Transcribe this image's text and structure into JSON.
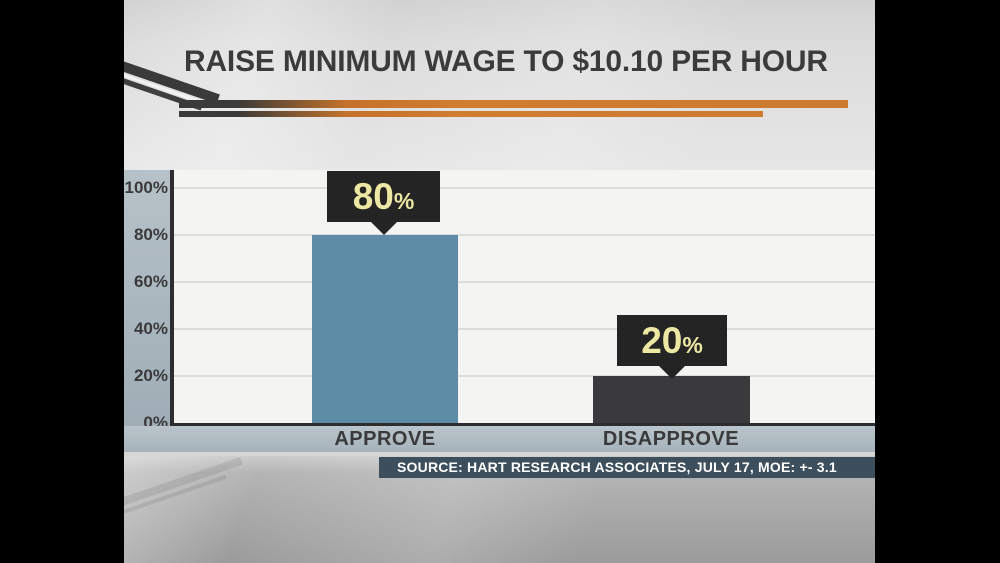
{
  "title": {
    "text": "RAISE MINIMUM WAGE TO $10.10 PER HOUR"
  },
  "chart_data": {
    "type": "bar",
    "title": "RAISE MINIMUM WAGE TO $10.10 PER HOUR",
    "categories": [
      "APPROVE",
      "DISAPPROVE"
    ],
    "values": [
      80,
      20
    ],
    "value_boxes": [
      {
        "number": "80",
        "suffix": "%"
      },
      {
        "number": "20",
        "suffix": "%"
      }
    ],
    "yticks": [
      "100%",
      "80%",
      "60%",
      "40%",
      "20%",
      "0%"
    ],
    "ylim": [
      0,
      100
    ],
    "grid": true,
    "legend": "none",
    "bar_colors": [
      "#5e8ca6",
      "#3a3a3c"
    ],
    "callout_bg": "#242424",
    "callout_text_color": "#ece7a2",
    "source": "SOURCE: HART RESEARCH ASSOCIATES, JULY 17, MOE: +- 3.1"
  },
  "colors": {
    "accent_orange": "#ce7a30",
    "swoosh_dark": "#3a3a3a",
    "letterbox": "#000000",
    "axis": "#2d2d2f",
    "plot_bg": "#f4f4f2",
    "band": "#aeb9c0",
    "source_bg": "#3d4f5c",
    "title_text": "#3b3b3b"
  }
}
